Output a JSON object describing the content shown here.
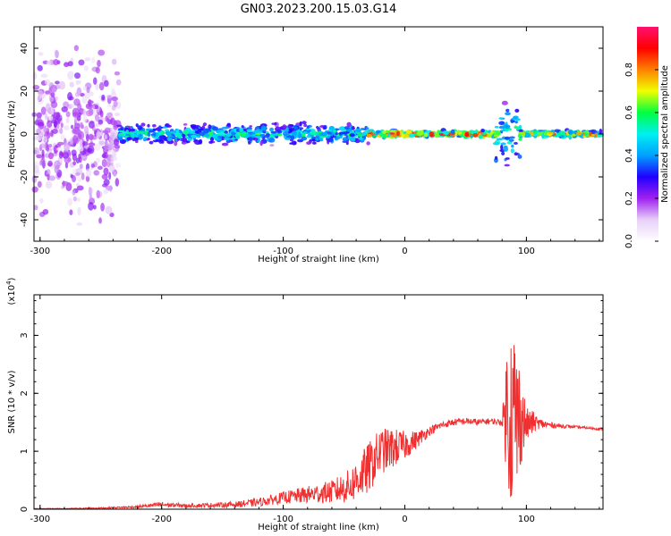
{
  "figure_title": "GN03.2023.200.15.03.G14",
  "chart_data": [
    {
      "type": "heatmap",
      "xlabel": "Height of straight line (km)",
      "ylabel": "Frequency (Hz)",
      "xlim": [
        -305,
        163
      ],
      "ylim": [
        -50,
        50
      ],
      "x_ticks": [
        -300,
        -200,
        -100,
        0,
        100
      ],
      "y_ticks": [
        -40,
        -20,
        0,
        20,
        40
      ],
      "grid": false,
      "colorbar": {
        "label": "Normalized spectral amplitude",
        "range": [
          0,
          1
        ],
        "ticks": [
          "0.0",
          "0.2",
          "0.4",
          "0.6",
          "0.8"
        ],
        "tick_values": [
          0.0,
          0.2,
          0.4,
          0.6,
          0.8
        ],
        "colors": [
          "#ffffff",
          "#e8d0f8",
          "#a020f0",
          "#2000ff",
          "#00a0ff",
          "#00f0f0",
          "#00ff40",
          "#f0ff00",
          "#ff8000",
          "#ff0000",
          "#ff1070"
        ]
      },
      "ridge": {
        "description_free": true,
        "center_frequency_hz": 0,
        "segments": [
          {
            "x_from": -305,
            "x_to": -235,
            "spread_hz": 50,
            "amplitude": 0.15
          },
          {
            "x_from": -235,
            "x_to": -30,
            "spread_hz": 6,
            "amplitude": 0.45
          },
          {
            "x_from": -30,
            "x_to": 75,
            "spread_hz": 2,
            "amplitude": 0.75
          },
          {
            "x_from": 75,
            "x_to": 95,
            "spread_hz": 18,
            "amplitude": 0.5
          },
          {
            "x_from": 95,
            "x_to": 163,
            "spread_hz": 2,
            "amplitude": 0.7
          }
        ]
      }
    },
    {
      "type": "line",
      "xlabel": "Height of straight line (km)",
      "ylabel": "SNR (10 * v/v)",
      "y_multiplier": "(x10",
      "y_multiplier_exp": "4",
      "y_multiplier_close": ")",
      "xlim": [
        -305,
        163
      ],
      "ylim": [
        0,
        3.7
      ],
      "x_ticks": [
        -300,
        -200,
        -100,
        0,
        100
      ],
      "y_ticks": [
        0,
        1,
        2,
        3
      ],
      "color": "#f03030",
      "series": [
        {
          "x": [
            -305,
            -280,
            -250,
            -220,
            -200,
            -180,
            -160,
            -140,
            -120,
            -100,
            -80,
            -60,
            -45,
            -30,
            -20,
            -10,
            0,
            10,
            20,
            30,
            40,
            50,
            60,
            70,
            80,
            85,
            90,
            95,
            100,
            105,
            110,
            120,
            140,
            163
          ],
          "y": [
            0.01,
            0.01,
            0.02,
            0.04,
            0.08,
            0.06,
            0.07,
            0.08,
            0.12,
            0.2,
            0.25,
            0.3,
            0.4,
            0.7,
            1.0,
            1.05,
            1.1,
            1.2,
            1.35,
            1.45,
            1.5,
            1.52,
            1.5,
            1.52,
            1.5,
            1.8,
            1.5,
            1.6,
            1.45,
            1.5,
            1.48,
            1.45,
            1.42,
            1.38
          ],
          "noise": [
            0.005,
            0.005,
            0.01,
            0.02,
            0.05,
            0.03,
            0.04,
            0.05,
            0.07,
            0.1,
            0.15,
            0.2,
            0.3,
            0.45,
            0.4,
            0.35,
            0.25,
            0.15,
            0.08,
            0.06,
            0.06,
            0.06,
            0.06,
            0.05,
            0.05,
            1.5,
            1.8,
            0.9,
            0.3,
            0.2,
            0.1,
            0.05,
            0.02,
            0.02
          ]
        }
      ]
    }
  ]
}
